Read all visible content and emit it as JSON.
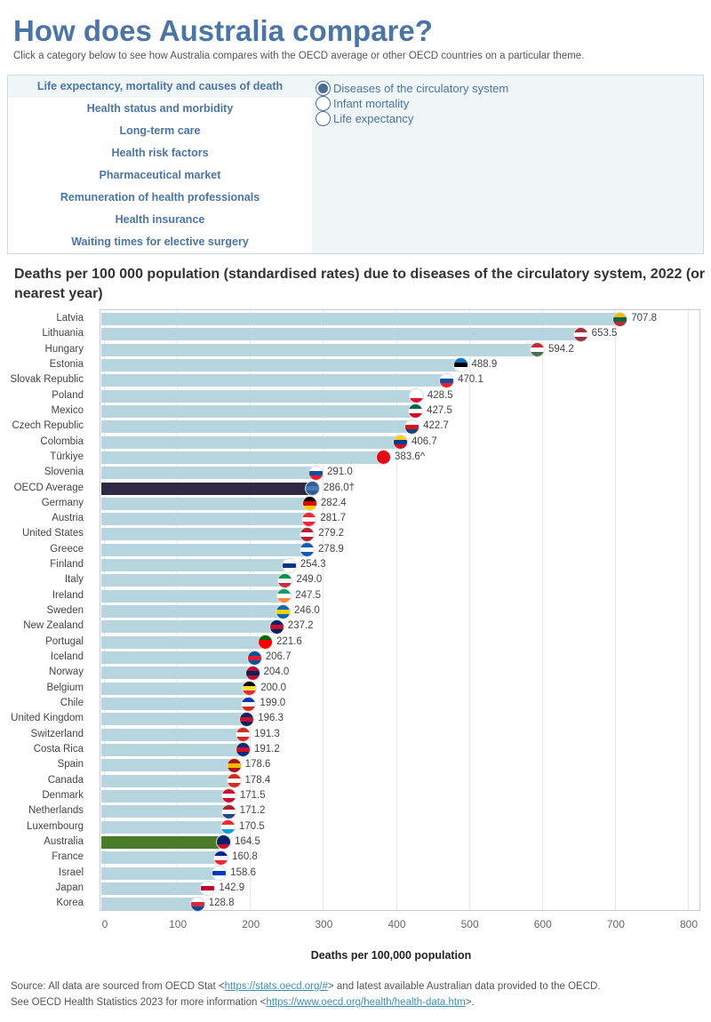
{
  "header": {
    "title": "How does Australia compare?",
    "subtitle": "Click a category below to see how Australia compares with the OECD average or other OECD countries on a particular theme."
  },
  "categories": [
    "Life expectancy, mortality and causes of death",
    "Health status and morbidity",
    "Long-term care",
    "Health risk factors",
    "Pharmaceutical market",
    "Remuneration of health professionals",
    "Health insurance",
    "Waiting times for elective surgery"
  ],
  "selected_category": 0,
  "options": [
    "Diseases of the circulatory system",
    "Infant mortality",
    "Life expectancy"
  ],
  "selected_option": 0,
  "colors": {
    "bar": "#b7d5df",
    "oecd": "#2f2946",
    "australia": "#4a7b2a",
    "title": "#4a75a5"
  },
  "chart_data": {
    "type": "bar",
    "orientation": "horizontal",
    "title": "Deaths per 100 000 population (standardised rates) due to diseases of the circulatory system, 2022 (or nearest year)",
    "xlabel": "Deaths per 100,000 population",
    "xlim": [
      0,
      800
    ],
    "xticks": [
      0,
      100,
      200,
      300,
      400,
      500,
      600,
      700,
      800
    ],
    "grid": true,
    "categories": [
      "Latvia",
      "Lithuania",
      "Hungary",
      "Estonia",
      "Slovak Republic",
      "Poland",
      "Mexico",
      "Czech Republic",
      "Colombia",
      "Türkiye",
      "Slovenia",
      "OECD Average",
      "Germany",
      "Austria",
      "United States",
      "Greece",
      "Finland",
      "Italy",
      "Ireland",
      "Sweden",
      "New Zealand",
      "Portugal",
      "Iceland",
      "Norway",
      "Belgium",
      "Chile",
      "United Kingdom",
      "Switzerland",
      "Costa Rica",
      "Spain",
      "Canada",
      "Denmark",
      "Netherlands",
      "Luxembourg",
      "Australia",
      "France",
      "Israel",
      "Japan",
      "Korea"
    ],
    "values": [
      707.8,
      653.5,
      594.2,
      488.9,
      470.1,
      428.5,
      427.5,
      422.7,
      406.7,
      383.6,
      291.0,
      286.0,
      282.4,
      281.7,
      279.2,
      278.9,
      254.3,
      249.0,
      247.5,
      246.0,
      237.2,
      221.6,
      206.7,
      204.0,
      200.0,
      199.0,
      196.3,
      191.3,
      191.2,
      178.6,
      178.4,
      171.5,
      171.2,
      170.5,
      164.5,
      160.8,
      158.6,
      142.9,
      128.8
    ],
    "value_labels": [
      "707.8",
      "653.5",
      "594.2",
      "488.9",
      "470.1",
      "428.5",
      "427.5",
      "422.7",
      "406.7",
      "383.6^",
      "291.0",
      "286.0†",
      "282.4",
      "281.7",
      "279.2",
      "278.9",
      "254.3",
      "249.0",
      "247.5",
      "246.0",
      "237.2",
      "221.6",
      "206.7",
      "204.0",
      "200.0",
      "199.0",
      "196.3",
      "191.3",
      "191.2",
      "178.6",
      "178.4",
      "171.5",
      "171.2",
      "170.5",
      "164.5",
      "160.8",
      "158.6",
      "142.9",
      "128.8"
    ],
    "flags": [
      [
        "#fdb913",
        "#006a44",
        "#c1272d"
      ],
      [
        "#9e3039",
        "#fff",
        "#9e3039"
      ],
      [
        "#ce2939",
        "#fff",
        "#477050"
      ],
      [
        "#0072ce",
        "#000",
        "#fff"
      ],
      [
        "#fff",
        "#0b4ea2",
        "#ee1c25"
      ],
      [
        "#fff",
        "#fff",
        "#dc143c"
      ],
      [
        "#006847",
        "#fff",
        "#ce1126"
      ],
      [
        "#fff",
        "#d7141a",
        "#11457e"
      ],
      [
        "#fcd116",
        "#003893",
        "#ce1126"
      ],
      [
        "#e30a17",
        "#e30a17",
        "#e30a17"
      ],
      [
        "#fff",
        "#0b4ea2",
        "#ee1c25"
      ],
      [
        "#2c5c9a",
        "#4a7ab8",
        "#2c5c9a"
      ],
      [
        "#000",
        "#dd0000",
        "#ffce00"
      ],
      [
        "#ed2939",
        "#fff",
        "#ed2939"
      ],
      [
        "#b22234",
        "#fff",
        "#b22234"
      ],
      [
        "#0d5eaf",
        "#fff",
        "#0d5eaf"
      ],
      [
        "#fff",
        "#003580",
        "#fff"
      ],
      [
        "#009246",
        "#fff",
        "#ce2b37"
      ],
      [
        "#169b62",
        "#fff",
        "#ff883e"
      ],
      [
        "#006aa7",
        "#fecc00",
        "#006aa7"
      ],
      [
        "#012169",
        "#c8102e",
        "#012169"
      ],
      [
        "#006600",
        "#ff0000",
        "#ff0000"
      ],
      [
        "#02529c",
        "#dc1e35",
        "#02529c"
      ],
      [
        "#ba0c2f",
        "#00205b",
        "#ba0c2f"
      ],
      [
        "#000",
        "#fae042",
        "#ed2939"
      ],
      [
        "#0039a6",
        "#fff",
        "#d52b1e"
      ],
      [
        "#012169",
        "#c8102e",
        "#012169"
      ],
      [
        "#d52b1e",
        "#fff",
        "#d52b1e"
      ],
      [
        "#002b7f",
        "#ce1126",
        "#002b7f"
      ],
      [
        "#aa151b",
        "#f1bf00",
        "#aa151b"
      ],
      [
        "#d52b1e",
        "#fff",
        "#d52b1e"
      ],
      [
        "#c8102e",
        "#fff",
        "#c8102e"
      ],
      [
        "#ae1c28",
        "#fff",
        "#21468b"
      ],
      [
        "#ed2939",
        "#fff",
        "#00a1de"
      ],
      [
        "#012169",
        "#012169",
        "#c8102e"
      ],
      [
        "#002395",
        "#fff",
        "#ed2939"
      ],
      [
        "#fff",
        "#0038b8",
        "#fff"
      ],
      [
        "#fff",
        "#bc002d",
        "#fff"
      ],
      [
        "#fff",
        "#cd2e3a",
        "#0047a0"
      ]
    ]
  },
  "footer": {
    "line1_pre": "Source: All data are sourced from OECD Stat <",
    "line1_link": "https://stats.oecd.org/#",
    "line1_post": "> and latest available Australian data provided to the OECD.",
    "line2_pre": "See OECD Health Statistics 2023 for more information <",
    "line2_link": "https://www.oecd.org/health/health-data.htm",
    "line2_post": ">."
  }
}
